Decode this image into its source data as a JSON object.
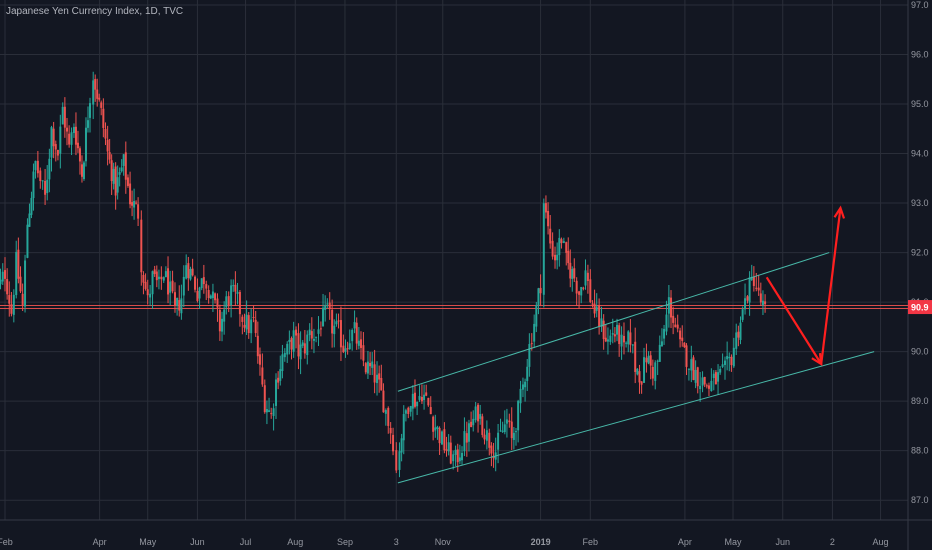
{
  "header": {
    "symbol_line": "Japanese Yen Currency Index, 1D, TVC"
  },
  "colors": {
    "background": "#131722",
    "grid": "#2a2e39",
    "up_candle": "#26a69a",
    "down_candle": "#ef5350",
    "axis_text": "#9598a1",
    "channel": "#48b8a8",
    "horizontal_level": "#ef5350",
    "arrows": "#ff1f1f",
    "price_badge": "#f23645"
  },
  "current_price_label": "90.9",
  "chart_data": {
    "type": "candlestick",
    "title": "Japanese Yen Currency Index, 1D, TVC",
    "y_axis": {
      "side": "right",
      "ylim": [
        86.6,
        97.1
      ],
      "ticks": [
        "87.0",
        "88.0",
        "89.0",
        "90.0",
        "91.0",
        "92.0",
        "93.0",
        "94.0",
        "95.0",
        "96.0",
        "97.0"
      ]
    },
    "x_axis": {
      "xlim": [
        "2018-02-01",
        "2019-08-15"
      ],
      "ticks": [
        {
          "date": "2018-02-01",
          "label": "Feb"
        },
        {
          "date": "2018-04-01",
          "label": "Apr"
        },
        {
          "date": "2018-05-01",
          "label": "May"
        },
        {
          "date": "2018-06-01",
          "label": "Jun"
        },
        {
          "date": "2018-07-01",
          "label": "Jul"
        },
        {
          "date": "2018-08-01",
          "label": "Aug"
        },
        {
          "date": "2018-09-01",
          "label": "Sep"
        },
        {
          "date": "2018-10-03",
          "label": "3"
        },
        {
          "date": "2018-11-01",
          "label": "Nov"
        },
        {
          "date": "2019-01-01",
          "label": "2019"
        },
        {
          "date": "2019-02-01",
          "label": "Feb"
        },
        {
          "date": "2019-04-01",
          "label": "Apr"
        },
        {
          "date": "2019-05-01",
          "label": "May"
        },
        {
          "date": "2019-06-01",
          "label": "Jun"
        },
        {
          "date": "2019-07-02",
          "label": "2"
        },
        {
          "date": "2019-08-01",
          "label": "Aug"
        }
      ]
    },
    "grid": true,
    "price_path": [
      [
        "2018-01-25",
        91.0
      ],
      [
        "2018-02-01",
        91.6
      ],
      [
        "2018-02-05",
        90.8
      ],
      [
        "2018-02-08",
        91.8
      ],
      [
        "2018-02-12",
        90.9
      ],
      [
        "2018-02-15",
        92.6
      ],
      [
        "2018-02-20",
        93.8
      ],
      [
        "2018-02-26",
        93.1
      ],
      [
        "2018-03-02",
        94.5
      ],
      [
        "2018-03-06",
        94.0
      ],
      [
        "2018-03-09",
        94.9
      ],
      [
        "2018-03-13",
        94.1
      ],
      [
        "2018-03-16",
        94.6
      ],
      [
        "2018-03-21",
        93.6
      ],
      [
        "2018-03-26",
        95.2
      ],
      [
        "2018-03-28",
        95.6
      ],
      [
        "2018-04-02",
        94.8
      ],
      [
        "2018-04-06",
        94.0
      ],
      [
        "2018-04-11",
        93.3
      ],
      [
        "2018-04-16",
        93.8
      ],
      [
        "2018-04-20",
        93.1
      ],
      [
        "2018-04-25",
        92.8
      ],
      [
        "2018-04-27",
        91.8
      ],
      [
        "2018-05-01",
        91.0
      ],
      [
        "2018-05-04",
        91.5
      ],
      [
        "2018-05-08",
        91.3
      ],
      [
        "2018-05-11",
        91.6
      ],
      [
        "2018-05-15",
        91.2
      ],
      [
        "2018-05-18",
        90.8
      ],
      [
        "2018-05-22",
        91.1
      ],
      [
        "2018-05-25",
        91.8
      ],
      [
        "2018-05-29",
        91.5
      ],
      [
        "2018-06-01",
        91.2
      ],
      [
        "2018-06-05",
        91.5
      ],
      [
        "2018-06-08",
        91.3
      ],
      [
        "2018-06-12",
        90.9
      ],
      [
        "2018-06-15",
        90.5
      ],
      [
        "2018-06-19",
        91.0
      ],
      [
        "2018-06-22",
        91.2
      ],
      [
        "2018-06-26",
        91.0
      ],
      [
        "2018-06-29",
        90.7
      ],
      [
        "2018-07-03",
        90.5
      ],
      [
        "2018-07-06",
        90.6
      ],
      [
        "2018-07-10",
        89.6
      ],
      [
        "2018-07-13",
        89.0
      ],
      [
        "2018-07-17",
        88.7
      ],
      [
        "2018-07-20",
        89.4
      ],
      [
        "2018-07-24",
        89.9
      ],
      [
        "2018-07-27",
        90.0
      ],
      [
        "2018-07-31",
        90.3
      ],
      [
        "2018-08-03",
        90.0
      ],
      [
        "2018-08-07",
        90.1
      ],
      [
        "2018-08-10",
        90.4
      ],
      [
        "2018-08-14",
        90.3
      ],
      [
        "2018-08-17",
        90.6
      ],
      [
        "2018-08-21",
        90.8
      ],
      [
        "2018-08-24",
        90.5
      ],
      [
        "2018-08-28",
        90.4
      ],
      [
        "2018-08-31",
        90.1
      ],
      [
        "2018-09-04",
        90.3
      ],
      [
        "2018-09-07",
        90.4
      ],
      [
        "2018-09-11",
        89.9
      ],
      [
        "2018-09-14",
        89.7
      ],
      [
        "2018-09-18",
        89.6
      ],
      [
        "2018-09-21",
        89.4
      ],
      [
        "2018-09-25",
        89.0
      ],
      [
        "2018-09-28",
        88.6
      ],
      [
        "2018-10-01",
        88.2
      ],
      [
        "2018-10-03",
        87.6
      ],
      [
        "2018-10-05",
        88.1
      ],
      [
        "2018-10-09",
        88.8
      ],
      [
        "2018-10-12",
        89.1
      ],
      [
        "2018-10-16",
        89.0
      ],
      [
        "2018-10-19",
        89.2
      ],
      [
        "2018-10-23",
        88.9
      ],
      [
        "2018-10-26",
        88.6
      ],
      [
        "2018-10-30",
        88.3
      ],
      [
        "2018-11-02",
        88.1
      ],
      [
        "2018-11-06",
        87.9
      ],
      [
        "2018-11-09",
        87.8
      ],
      [
        "2018-11-13",
        88.1
      ],
      [
        "2018-11-16",
        88.3
      ],
      [
        "2018-11-20",
        88.6
      ],
      [
        "2018-11-23",
        88.8
      ],
      [
        "2018-11-27",
        88.4
      ],
      [
        "2018-11-30",
        88.2
      ],
      [
        "2018-12-04",
        88.0
      ],
      [
        "2018-12-07",
        88.3
      ],
      [
        "2018-12-11",
        88.6
      ],
      [
        "2018-12-14",
        88.2
      ],
      [
        "2018-12-18",
        88.8
      ],
      [
        "2018-12-21",
        89.3
      ],
      [
        "2018-12-25",
        90.1
      ],
      [
        "2018-12-28",
        90.6
      ],
      [
        "2019-01-01",
        91.4
      ],
      [
        "2019-01-03",
        93.0
      ],
      [
        "2019-01-07",
        92.2
      ],
      [
        "2019-01-10",
        91.9
      ],
      [
        "2019-01-14",
        92.3
      ],
      [
        "2019-01-17",
        91.8
      ],
      [
        "2019-01-22",
        91.5
      ],
      [
        "2019-01-25",
        91.2
      ],
      [
        "2019-01-29",
        91.6
      ],
      [
        "2019-02-01",
        91.1
      ],
      [
        "2019-02-05",
        90.7
      ],
      [
        "2019-02-08",
        90.5
      ],
      [
        "2019-02-12",
        90.2
      ],
      [
        "2019-02-15",
        90.4
      ],
      [
        "2019-02-19",
        90.3
      ],
      [
        "2019-02-22",
        90.0
      ],
      [
        "2019-02-26",
        90.3
      ],
      [
        "2019-03-01",
        89.7
      ],
      [
        "2019-03-05",
        89.5
      ],
      [
        "2019-03-08",
        89.9
      ],
      [
        "2019-03-12",
        89.6
      ],
      [
        "2019-03-15",
        89.8
      ],
      [
        "2019-03-19",
        90.4
      ],
      [
        "2019-03-22",
        91.0
      ],
      [
        "2019-03-26",
        90.5
      ],
      [
        "2019-03-29",
        90.1
      ],
      [
        "2019-04-02",
        89.9
      ],
      [
        "2019-04-05",
        89.7
      ],
      [
        "2019-04-09",
        89.5
      ],
      [
        "2019-04-12",
        89.4
      ],
      [
        "2019-04-16",
        89.3
      ],
      [
        "2019-04-19",
        89.4
      ],
      [
        "2019-04-23",
        89.5
      ],
      [
        "2019-04-26",
        89.6
      ],
      [
        "2019-04-30",
        89.9
      ],
      [
        "2019-05-03",
        90.3
      ],
      [
        "2019-05-07",
        90.8
      ],
      [
        "2019-05-10",
        91.2
      ],
      [
        "2019-05-14",
        91.5
      ],
      [
        "2019-05-17",
        91.1
      ],
      [
        "2019-05-21",
        90.8
      ]
    ],
    "channel": {
      "upper": [
        [
          "2018-10-04",
          89.2
        ],
        [
          "2019-06-30",
          92.0
        ]
      ],
      "lower": [
        [
          "2018-10-04",
          87.35
        ],
        [
          "2019-07-28",
          90.0
        ]
      ]
    },
    "horizontal_level": 90.9,
    "arrows": [
      {
        "from": [
          "2019-05-22",
          91.5
        ],
        "to": [
          "2019-06-25",
          89.75
        ]
      },
      {
        "from": [
          "2019-06-25",
          89.75
        ],
        "to": [
          "2019-07-07",
          92.9
        ]
      }
    ]
  }
}
